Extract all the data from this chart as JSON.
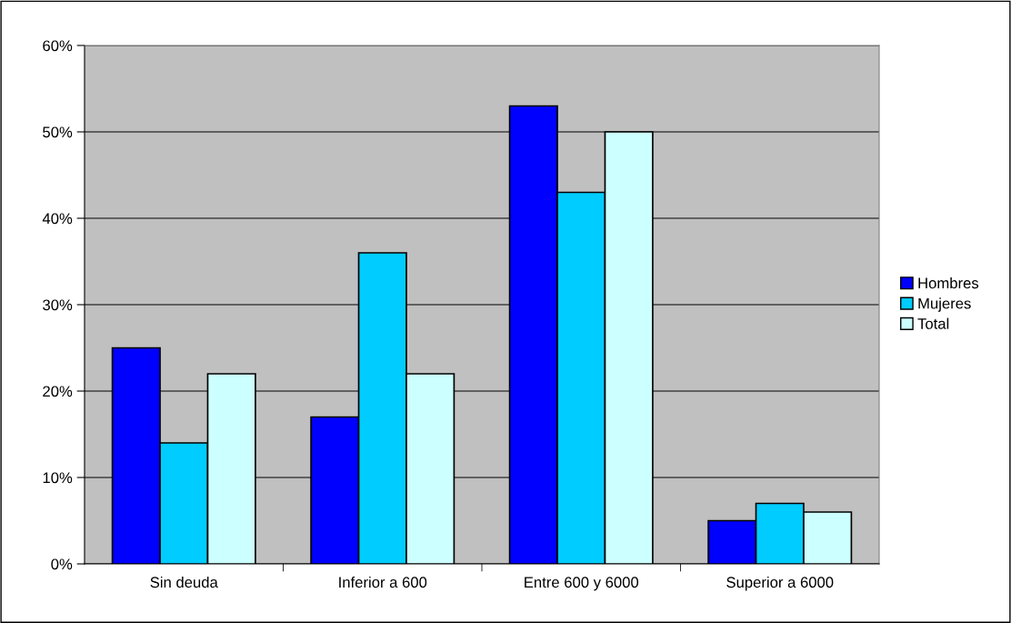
{
  "chart_data": {
    "type": "bar",
    "categories": [
      "Sin deuda",
      "Inferior a 600",
      "Entre 600 y 6000",
      "Superior a 6000"
    ],
    "series": [
      {
        "name": "Hombres",
        "color": "#0000ff",
        "values": [
          25,
          17,
          53,
          5
        ]
      },
      {
        "name": "Mujeres",
        "color": "#00ccff",
        "values": [
          14,
          36,
          43,
          7
        ]
      },
      {
        "name": "Total",
        "color": "#ccffff",
        "values": [
          22,
          22,
          50,
          6
        ]
      }
    ],
    "ylim": [
      0,
      60
    ],
    "yticks": [
      {
        "value": 0,
        "label": "0%"
      },
      {
        "value": 10,
        "label": "10%"
      },
      {
        "value": 20,
        "label": "20%"
      },
      {
        "value": 30,
        "label": "30%"
      },
      {
        "value": 40,
        "label": "40%"
      },
      {
        "value": 50,
        "label": "50%"
      },
      {
        "value": 60,
        "label": "60%"
      }
    ],
    "grid": "y",
    "legend": "right"
  }
}
